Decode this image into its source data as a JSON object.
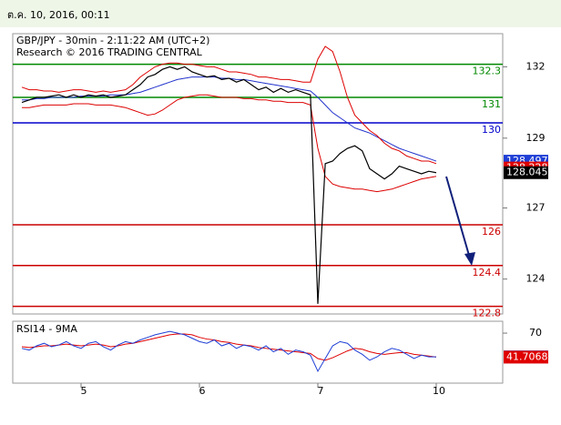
{
  "header": {
    "timestamp": "ต.ค. 10, 2016, 00:11"
  },
  "chart_data": [
    {
      "type": "line",
      "title": "GBP/JPY - 30min - 2:11:22 AM (UTC+2)",
      "subtitle": "Research © 2016 TRADING CENTRAL",
      "categories": [
        null,
        null,
        null,
        null,
        null,
        null,
        null,
        null,
        "5",
        null,
        null,
        null,
        null,
        null,
        null,
        null,
        null,
        null,
        null,
        null,
        null,
        null,
        null,
        null,
        "6",
        null,
        null,
        null,
        null,
        null,
        null,
        null,
        null,
        null,
        null,
        null,
        null,
        null,
        null,
        null,
        "7",
        null,
        null,
        null,
        null,
        null,
        null,
        null,
        null,
        null,
        null,
        null,
        null,
        null,
        null,
        null,
        "10"
      ],
      "series": [
        {
          "color": "#000000",
          "values": [
            130.8,
            130.9,
            131.0,
            131.0,
            131.05,
            131.1,
            131.0,
            131.1,
            131.0,
            131.1,
            131.05,
            131.1,
            131.0,
            131.05,
            131.1,
            131.3,
            131.5,
            131.8,
            131.9,
            132.1,
            132.2,
            132.1,
            132.2,
            132.0,
            131.9,
            131.8,
            131.85,
            131.7,
            131.75,
            131.6,
            131.7,
            131.5,
            131.3,
            131.4,
            131.2,
            131.35,
            131.2,
            131.3,
            131.2,
            131.1,
            122.9,
            128.4,
            128.5,
            128.8,
            129.0,
            129.1,
            128.9,
            128.2,
            128.0,
            127.8,
            128.0,
            128.3,
            128.2,
            128.1,
            128.0,
            128.1,
            128.045
          ]
        },
        {
          "color": "#dd0000",
          "values": [
            131.4,
            131.3,
            131.3,
            131.25,
            131.25,
            131.2,
            131.25,
            131.3,
            131.3,
            131.25,
            131.2,
            131.25,
            131.2,
            131.25,
            131.3,
            131.5,
            131.8,
            132.0,
            132.2,
            132.3,
            132.35,
            132.35,
            132.3,
            132.3,
            132.25,
            132.2,
            132.2,
            132.1,
            132.0,
            132.0,
            131.95,
            131.9,
            131.8,
            131.8,
            131.75,
            131.7,
            131.7,
            131.65,
            131.6,
            131.6,
            132.5,
            133.0,
            132.8,
            132.0,
            131.0,
            130.3,
            130.0,
            129.7,
            129.5,
            129.2,
            129.0,
            128.9,
            128.7,
            128.6,
            128.5,
            128.5,
            128.4
          ]
        },
        {
          "color": "#dd0000",
          "values": [
            130.6,
            130.6,
            130.65,
            130.7,
            130.7,
            130.7,
            130.7,
            130.75,
            130.75,
            130.75,
            130.7,
            130.7,
            130.7,
            130.65,
            130.6,
            130.5,
            130.4,
            130.3,
            130.35,
            130.5,
            130.7,
            130.9,
            131.0,
            131.05,
            131.1,
            131.1,
            131.05,
            131.0,
            131.0,
            131.0,
            130.95,
            130.95,
            130.9,
            130.9,
            130.85,
            130.85,
            130.8,
            130.8,
            130.8,
            130.7,
            129.0,
            127.9,
            127.6,
            127.5,
            127.45,
            127.4,
            127.4,
            127.35,
            127.3,
            127.35,
            127.4,
            127.5,
            127.6,
            127.7,
            127.8,
            127.85,
            127.9
          ]
        },
        {
          "color": "#2233cc",
          "values": [
            130.9,
            130.9,
            130.95,
            130.95,
            131.0,
            131.0,
            131.0,
            131.0,
            131.05,
            131.05,
            131.05,
            131.05,
            131.1,
            131.1,
            131.1,
            131.15,
            131.2,
            131.3,
            131.4,
            131.5,
            131.6,
            131.7,
            131.75,
            131.8,
            131.8,
            131.8,
            131.8,
            131.75,
            131.75,
            131.7,
            131.7,
            131.65,
            131.6,
            131.55,
            131.5,
            131.45,
            131.4,
            131.35,
            131.3,
            131.25,
            131.0,
            130.7,
            130.4,
            130.2,
            130.0,
            129.8,
            129.7,
            129.6,
            129.45,
            129.3,
            129.15,
            129.0,
            128.9,
            128.8,
            128.7,
            128.6,
            128.497
          ]
        }
      ],
      "levels": [
        {
          "value": 132.3,
          "color": "#008800"
        },
        {
          "value": 131,
          "color": "#008800"
        },
        {
          "value": 130,
          "color": "#0000cc"
        },
        {
          "value": 126,
          "color": "#cc0000"
        },
        {
          "value": 124.4,
          "color": "#cc0000"
        },
        {
          "value": 122.8,
          "color": "#cc0000"
        }
      ],
      "price_tags": [
        {
          "value": 128.497,
          "color": "#1f3fd6"
        },
        {
          "value": 128.228,
          "color": "#e00000"
        },
        {
          "value": 128.045,
          "color": "#000000"
        }
      ],
      "ylim": [
        122.5,
        133.5
      ],
      "yticks": [
        {
          "value": 132.2,
          "label": "132"
        },
        {
          "value": 129.4,
          "label": "129"
        },
        {
          "value": 126.66,
          "label": "127"
        },
        {
          "value": 123.87,
          "label": "124"
        }
      ]
    },
    {
      "type": "line",
      "title": "RSI14 - 9MA",
      "series": [
        {
          "color": "#1f3fd6",
          "values": [
            52,
            50,
            55,
            58,
            54,
            56,
            60,
            55,
            52,
            58,
            60,
            54,
            50,
            56,
            60,
            58,
            62,
            65,
            68,
            70,
            72,
            70,
            68,
            64,
            60,
            58,
            62,
            55,
            58,
            52,
            56,
            54,
            50,
            55,
            48,
            52,
            45,
            50,
            48,
            44,
            25,
            40,
            55,
            60,
            58,
            50,
            45,
            38,
            42,
            48,
            52,
            50,
            45,
            40,
            44,
            42,
            41.9698
          ]
        },
        {
          "color": "#e00000",
          "values": [
            54,
            53,
            54,
            55,
            55,
            56,
            57,
            56,
            55,
            56,
            57,
            56,
            54,
            55,
            57,
            58,
            60,
            62,
            64,
            66,
            68,
            69,
            69,
            68,
            65,
            63,
            62,
            60,
            59,
            57,
            56,
            55,
            53,
            52,
            51,
            50,
            49,
            48,
            47,
            46,
            40,
            38,
            41,
            45,
            49,
            52,
            51,
            48,
            46,
            45,
            46,
            47,
            47,
            45,
            44,
            43,
            41.7068
          ]
        }
      ],
      "ylim": [
        11,
        84
      ],
      "yticks": [
        70
      ]
    }
  ]
}
